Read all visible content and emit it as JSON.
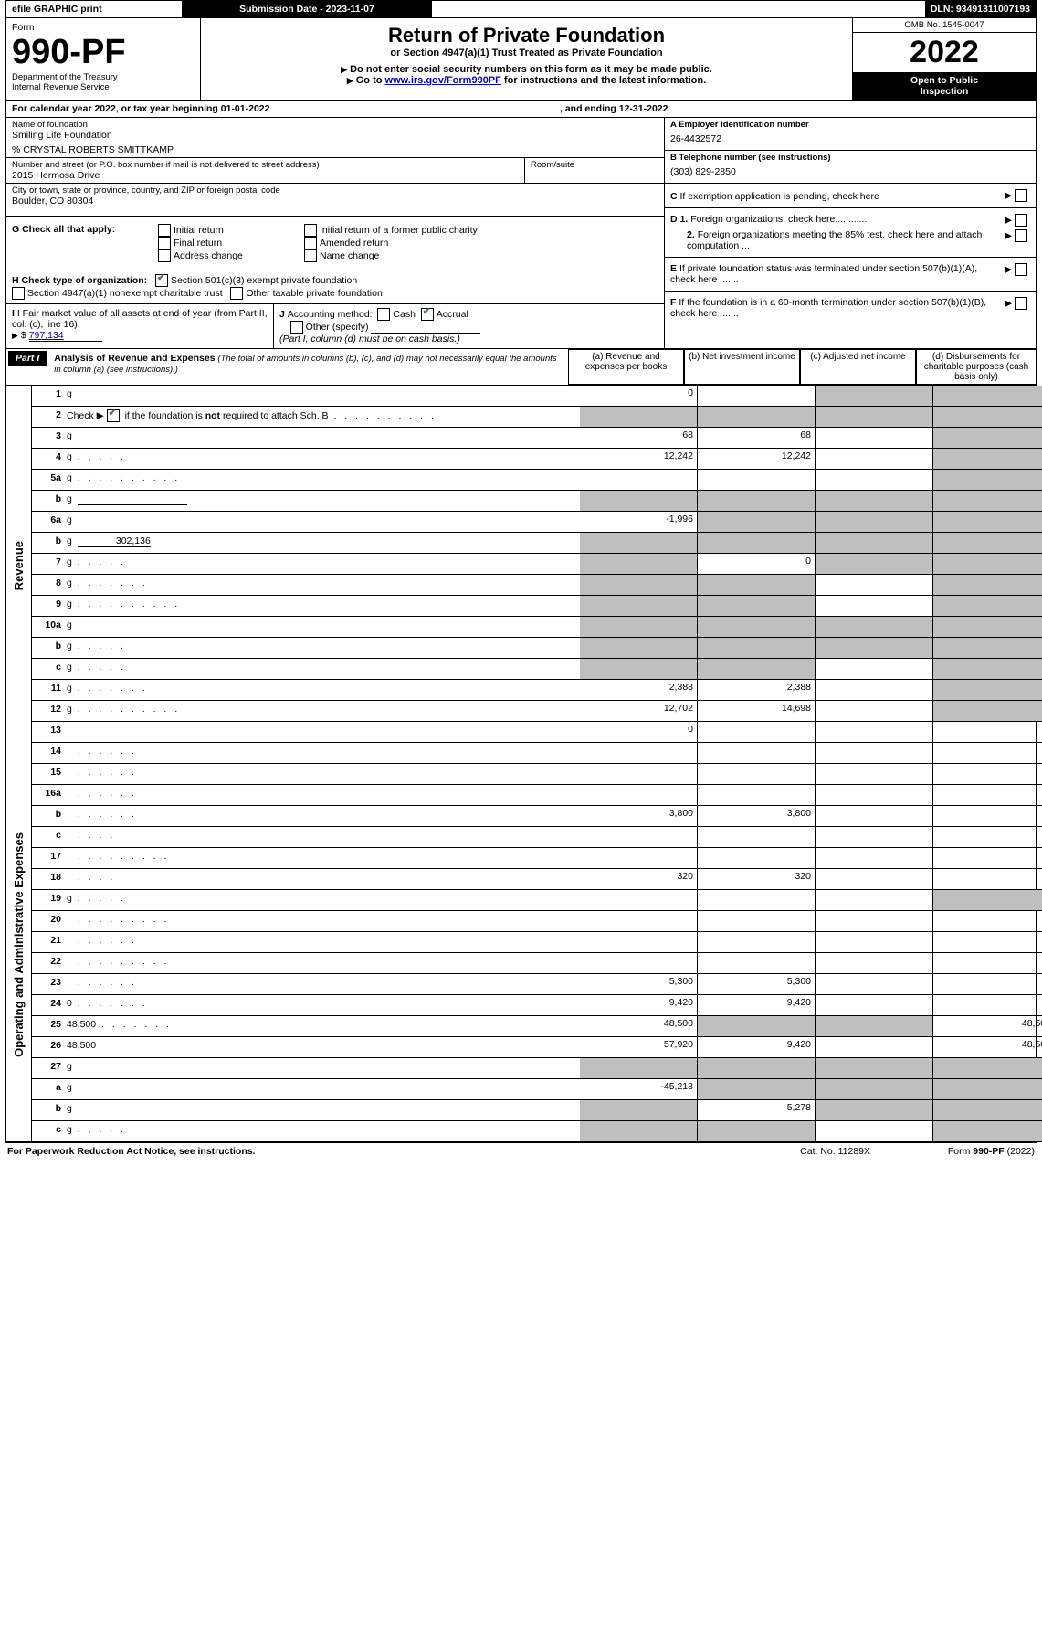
{
  "top_bar": {
    "efile": "efile GRAPHIC print",
    "submission_label": "Submission Date - 2023-11-07",
    "dln": "DLN: 93491311007193"
  },
  "header": {
    "form_word": "Form",
    "form_no": "990-PF",
    "dept": "Department of the Treasury",
    "irs": "Internal Revenue Service",
    "title": "Return of Private Foundation",
    "subtitle": "or Section 4947(a)(1) Trust Treated as Private Foundation",
    "note1": "Do not enter social security numbers on this form as it may be made public.",
    "note2_pre": "Go to ",
    "note2_link": "www.irs.gov/Form990PF",
    "note2_post": " for instructions and the latest information.",
    "omb": "OMB No. 1545-0047",
    "year": "2022",
    "open1": "Open to Public",
    "open2": "Inspection"
  },
  "cal": {
    "line": "For calendar year 2022, or tax year beginning 01-01-2022",
    "ending": ", and ending 12-31-2022"
  },
  "name_block": {
    "label": "Name of foundation",
    "name": "Smiling Life Foundation",
    "care_of": "% CRYSTAL ROBERTS SMITTKAMP",
    "addr_label": "Number and street (or P.O. box number if mail is not delivered to street address)",
    "addr": "2015 Hermosa Drive",
    "room_label": "Room/suite",
    "city_label": "City or town, state or province, country, and ZIP or foreign postal code",
    "city": "Boulder, CO  80304"
  },
  "right_block": {
    "a_label": "A Employer identification number",
    "a_val": "26-4432572",
    "b_label": "B Telephone number (see instructions)",
    "b_val": "(303) 829-2850",
    "c_label": "C If exemption application is pending, check here",
    "d1": "D 1. Foreign organizations, check here............",
    "d2": "2. Foreign organizations meeting the 85% test, check here and attach computation ...",
    "e": "E  If private foundation status was terminated under section 507(b)(1)(A), check here .......",
    "f": "F  If the foundation is in a 60-month termination under section 507(b)(1)(B), check here .......",
    "arrow": "▶"
  },
  "g": {
    "label": "G Check all that apply:",
    "o1": "Initial return",
    "o2": "Final return",
    "o3": "Address change",
    "o4": "Initial return of a former public charity",
    "o5": "Amended return",
    "o6": "Name change"
  },
  "h": {
    "label": "H Check type of organization:",
    "o1": "Section 501(c)(3) exempt private foundation",
    "o2": "Section 4947(a)(1) nonexempt charitable trust",
    "o3": "Other taxable private foundation"
  },
  "i": {
    "label": "I Fair market value of all assets at end of year (from Part II, col. (c), line 16)",
    "arrow": "▶$",
    "val": "797,134"
  },
  "j": {
    "label": "J Accounting method:",
    "cash": "Cash",
    "accrual": "Accrual",
    "other": "Other (specify)",
    "note": "(Part I, column (d) must be on cash basis.)"
  },
  "part1": {
    "tag": "Part I",
    "title": "Analysis of Revenue and Expenses",
    "title_note": "(The total of amounts in columns (b), (c), and (d) may not necessarily equal the amounts in column (a) (see instructions).)",
    "col_a": "(a)   Revenue and expenses per books",
    "col_b": "(b)   Net investment income",
    "col_c": "(c)   Adjusted net income",
    "col_d": "(d)   Disbursements for charitable purposes (cash basis only)"
  },
  "vert": {
    "rev": "Revenue",
    "exp": "Operating and Administrative Expenses"
  },
  "lines": [
    {
      "n": "1",
      "d": "g",
      "a": "0",
      "b": "",
      "c": "g"
    },
    {
      "n": "2",
      "d": "g",
      "check": true,
      "dots": true,
      "a": "g",
      "b": "g",
      "c": "g"
    },
    {
      "n": "3",
      "d": "g",
      "a": "68",
      "b": "68",
      "c": ""
    },
    {
      "n": "4",
      "d": "g",
      "dots": "short",
      "a": "12,242",
      "b": "12,242",
      "c": ""
    },
    {
      "n": "5a",
      "d": "g",
      "dots": true,
      "a": "",
      "b": "",
      "c": ""
    },
    {
      "n": "b",
      "d": "g",
      "blank": true,
      "a": "g",
      "b": "g",
      "c": "g"
    },
    {
      "n": "6a",
      "d": "g",
      "a": "-1,996",
      "b": "g",
      "c": "g"
    },
    {
      "n": "b",
      "d": "g",
      "inline": "302,136",
      "a": "g",
      "b": "g",
      "c": "g"
    },
    {
      "n": "7",
      "d": "g",
      "dots": "short",
      "a": "g",
      "b": "0",
      "c": "g"
    },
    {
      "n": "8",
      "d": "g",
      "dots": "med",
      "a": "g",
      "b": "g",
      "c": ""
    },
    {
      "n": "9",
      "d": "g",
      "dots": true,
      "a": "g",
      "b": "g",
      "c": ""
    },
    {
      "n": "10a",
      "d": "g",
      "blank": true,
      "a": "g",
      "b": "g",
      "c": "g"
    },
    {
      "n": "b",
      "d": "g",
      "dots": "short",
      "blank": true,
      "a": "g",
      "b": "g",
      "c": "g"
    },
    {
      "n": "c",
      "d": "g",
      "dots": "short",
      "a": "g",
      "b": "g",
      "c": ""
    },
    {
      "n": "11",
      "d": "g",
      "dots": "med",
      "a": "2,388",
      "b": "2,388",
      "c": ""
    },
    {
      "n": "12",
      "d": "g",
      "dots": true,
      "a": "12,702",
      "b": "14,698",
      "c": ""
    },
    {
      "n": "13",
      "d": "",
      "a": "0",
      "b": "",
      "c": ""
    },
    {
      "n": "14",
      "d": "",
      "dots": "med",
      "a": "",
      "b": "",
      "c": ""
    },
    {
      "n": "15",
      "d": "",
      "dots": "med",
      "a": "",
      "b": "",
      "c": ""
    },
    {
      "n": "16a",
      "d": "",
      "dots": "med",
      "a": "",
      "b": "",
      "c": ""
    },
    {
      "n": "b",
      "d": "",
      "dots": "med",
      "a": "3,800",
      "b": "3,800",
      "c": ""
    },
    {
      "n": "c",
      "d": "",
      "dots": "short",
      "a": "",
      "b": "",
      "c": ""
    },
    {
      "n": "17",
      "d": "",
      "dots": true,
      "a": "",
      "b": "",
      "c": ""
    },
    {
      "n": "18",
      "d": "",
      "dots": "short",
      "a": "320",
      "b": "320",
      "c": ""
    },
    {
      "n": "19",
      "d": "g",
      "dots": "short",
      "a": "",
      "b": "",
      "c": ""
    },
    {
      "n": "20",
      "d": "",
      "dots": true,
      "a": "",
      "b": "",
      "c": ""
    },
    {
      "n": "21",
      "d": "",
      "dots": "med",
      "a": "",
      "b": "",
      "c": ""
    },
    {
      "n": "22",
      "d": "",
      "dots": true,
      "a": "",
      "b": "",
      "c": ""
    },
    {
      "n": "23",
      "d": "",
      "dots": "med",
      "a": "5,300",
      "b": "5,300",
      "c": ""
    },
    {
      "n": "24",
      "d": "0",
      "dots": "med",
      "a": "9,420",
      "b": "9,420",
      "c": ""
    },
    {
      "n": "25",
      "d": "48,500",
      "dots": "med",
      "a": "48,500",
      "b": "g",
      "c": "g"
    },
    {
      "n": "26",
      "d": "48,500",
      "a": "57,920",
      "b": "9,420",
      "c": ""
    },
    {
      "n": "27",
      "d": "g",
      "a": "g",
      "b": "g",
      "c": "g"
    },
    {
      "n": "a",
      "d": "g",
      "a": "-45,218",
      "b": "g",
      "c": "g"
    },
    {
      "n": "b",
      "d": "g",
      "a": "g",
      "b": "5,278",
      "c": "g"
    },
    {
      "n": "c",
      "d": "g",
      "dots": "short",
      "a": "g",
      "b": "g",
      "c": ""
    }
  ],
  "footer": {
    "left": "For Paperwork Reduction Act Notice, see instructions.",
    "mid": "Cat. No. 11289X",
    "right": "Form 990-PF (2022)",
    "right_form": "990-PF"
  },
  "colors": {
    "grey": "#bfbfbf",
    "blue": "#0000cc",
    "green": "#3b7a3b"
  }
}
